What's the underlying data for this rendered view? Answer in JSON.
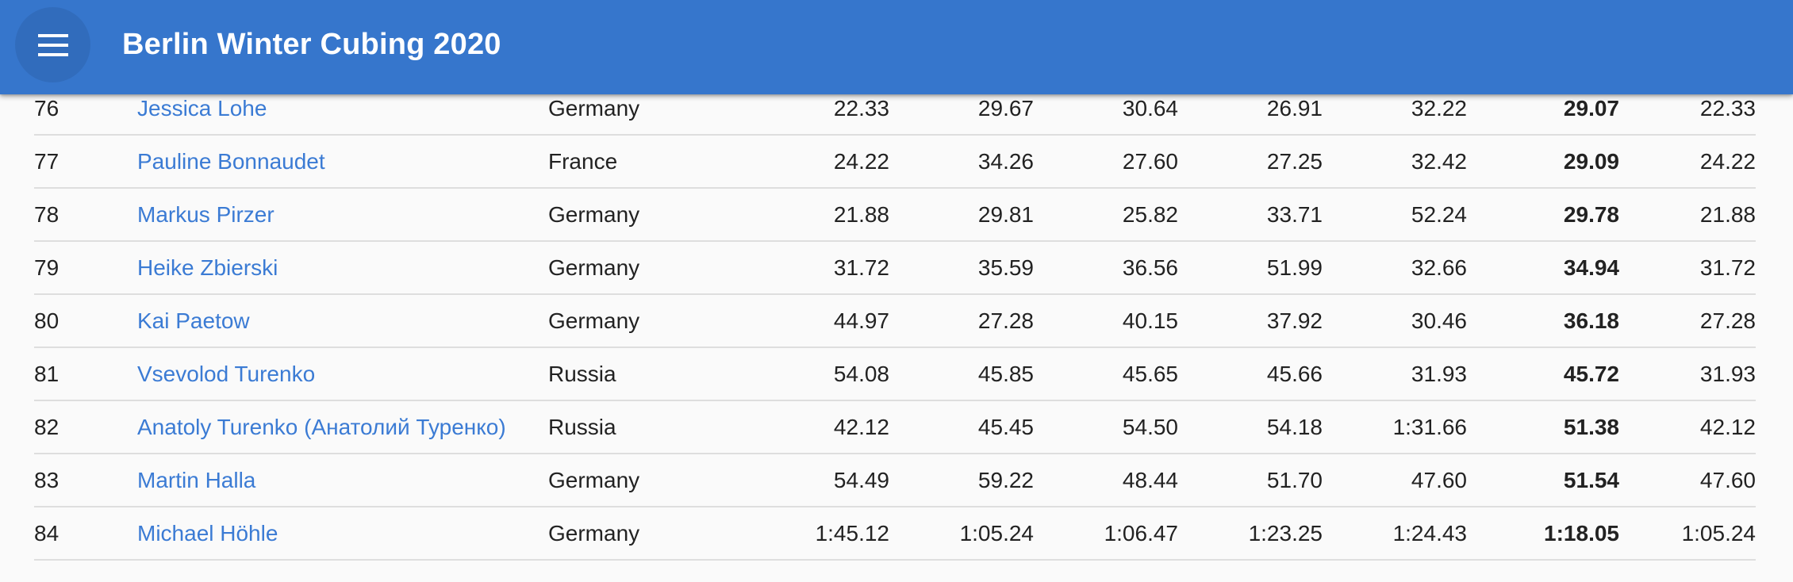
{
  "appbar": {
    "title": "Berlin Winter Cubing 2020",
    "menu_icon": "menu-icon",
    "background_color": "#3676cc"
  },
  "colors": {
    "link": "#3b7bd4",
    "text": "#222222",
    "row_divider": "#dedede"
  },
  "results": [
    {
      "rank": "76",
      "name": "Jessica Lohe",
      "country": "Germany",
      "t1": "22.33",
      "t2": "29.67",
      "t3": "30.64",
      "t4": "26.91",
      "t5": "32.22",
      "average": "29.07",
      "best": "22.33"
    },
    {
      "rank": "77",
      "name": "Pauline Bonnaudet",
      "country": "France",
      "t1": "24.22",
      "t2": "34.26",
      "t3": "27.60",
      "t4": "27.25",
      "t5": "32.42",
      "average": "29.09",
      "best": "24.22"
    },
    {
      "rank": "78",
      "name": "Markus Pirzer",
      "country": "Germany",
      "t1": "21.88",
      "t2": "29.81",
      "t3": "25.82",
      "t4": "33.71",
      "t5": "52.24",
      "average": "29.78",
      "best": "21.88"
    },
    {
      "rank": "79",
      "name": "Heike Zbierski",
      "country": "Germany",
      "t1": "31.72",
      "t2": "35.59",
      "t3": "36.56",
      "t4": "51.99",
      "t5": "32.66",
      "average": "34.94",
      "best": "31.72"
    },
    {
      "rank": "80",
      "name": "Kai Paetow",
      "country": "Germany",
      "t1": "44.97",
      "t2": "27.28",
      "t3": "40.15",
      "t4": "37.92",
      "t5": "30.46",
      "average": "36.18",
      "best": "27.28"
    },
    {
      "rank": "81",
      "name": "Vsevolod Turenko",
      "country": "Russia",
      "t1": "54.08",
      "t2": "45.85",
      "t3": "45.65",
      "t4": "45.66",
      "t5": "31.93",
      "average": "45.72",
      "best": "31.93"
    },
    {
      "rank": "82",
      "name": "Anatoly Turenko (Анатолий Туренко)",
      "country": "Russia",
      "t1": "42.12",
      "t2": "45.45",
      "t3": "54.50",
      "t4": "54.18",
      "t5": "1:31.66",
      "average": "51.38",
      "best": "42.12"
    },
    {
      "rank": "83",
      "name": "Martin Halla",
      "country": "Germany",
      "t1": "54.49",
      "t2": "59.22",
      "t3": "48.44",
      "t4": "51.70",
      "t5": "47.60",
      "average": "51.54",
      "best": "47.60"
    },
    {
      "rank": "84",
      "name": "Michael Höhle",
      "country": "Germany",
      "t1": "1:45.12",
      "t2": "1:05.24",
      "t3": "1:06.47",
      "t4": "1:23.25",
      "t5": "1:24.43",
      "average": "1:18.05",
      "best": "1:05.24"
    }
  ]
}
